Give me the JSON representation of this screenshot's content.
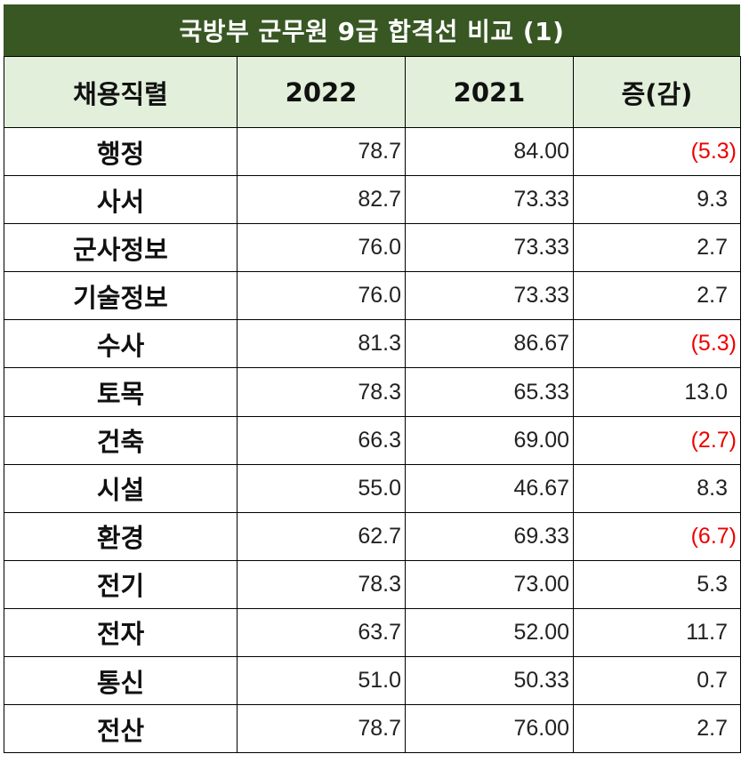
{
  "title": "국방부 군무원  9급 합격선 비교 (1)",
  "header": {
    "job": "채용직렬",
    "y2022": "2022",
    "y2021": "2021",
    "change": "증(감)"
  },
  "rows": [
    {
      "job": "행정",
      "y2022": "78.7",
      "y2021": "84.00",
      "change": "(5.3)",
      "negative": true
    },
    {
      "job": "사서",
      "y2022": "82.7",
      "y2021": "73.33",
      "change": "9.3",
      "negative": false
    },
    {
      "job": "군사정보",
      "y2022": "76.0",
      "y2021": "73.33",
      "change": "2.7",
      "negative": false
    },
    {
      "job": "기술정보",
      "y2022": "76.0",
      "y2021": "73.33",
      "change": "2.7",
      "negative": false
    },
    {
      "job": "수사",
      "y2022": "81.3",
      "y2021": "86.67",
      "change": "(5.3)",
      "negative": true
    },
    {
      "job": "토목",
      "y2022": "78.3",
      "y2021": "65.33",
      "change": "13.0",
      "negative": false
    },
    {
      "job": "건축",
      "y2022": "66.3",
      "y2021": "69.00",
      "change": "(2.7)",
      "negative": true
    },
    {
      "job": "시설",
      "y2022": "55.0",
      "y2021": "46.67",
      "change": "8.3",
      "negative": false
    },
    {
      "job": "환경",
      "y2022": "62.7",
      "y2021": "69.33",
      "change": "(6.7)",
      "negative": true
    },
    {
      "job": "전기",
      "y2022": "78.3",
      "y2021": "73.00",
      "change": "5.3",
      "negative": false
    },
    {
      "job": "전자",
      "y2022": "63.7",
      "y2021": "52.00",
      "change": "11.7",
      "negative": false
    },
    {
      "job": "통신",
      "y2022": "51.0",
      "y2021": "50.33",
      "change": "0.7",
      "negative": false
    },
    {
      "job": "전산",
      "y2022": "78.7",
      "y2021": "76.00",
      "change": "2.7",
      "negative": false
    }
  ],
  "colors": {
    "title_bg": "#385723",
    "header_bg": "#e2efda",
    "negative": "#ee0000"
  }
}
